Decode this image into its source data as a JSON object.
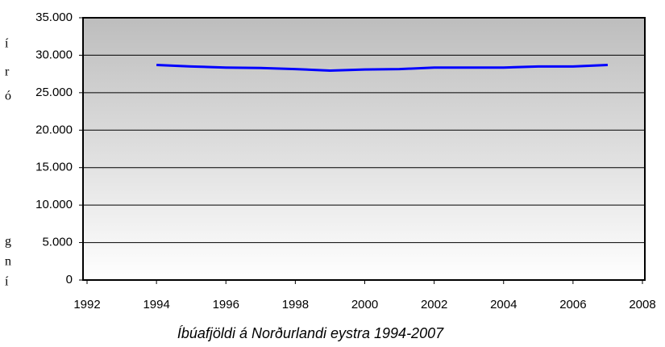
{
  "chart_data": {
    "type": "line",
    "title": "Íbúafjöldi á Norðurlandi eystra 1994-2007",
    "margin_fragments": [
      "í",
      "r",
      "ó",
      "g",
      "n",
      "í"
    ],
    "x": [
      1994,
      1995,
      1996,
      1997,
      1998,
      1999,
      2000,
      2001,
      2002,
      2003,
      2004,
      2005,
      2006,
      2007
    ],
    "series": [
      {
        "name": null,
        "color": "#0000ff",
        "values": [
          28700,
          28500,
          28350,
          28300,
          28150,
          27950,
          28100,
          28150,
          28350,
          28350,
          28350,
          28500,
          28500,
          28700
        ]
      }
    ],
    "xlim": [
      1992,
      2008
    ],
    "xticks": [
      1992,
      1994,
      1996,
      1998,
      2000,
      2002,
      2004,
      2006,
      2008
    ],
    "ylim": [
      0,
      35000
    ],
    "yticks": [
      {
        "value": 0,
        "label": "0"
      },
      {
        "value": 5000,
        "label": "5.000"
      },
      {
        "value": 10000,
        "label": "10.000"
      },
      {
        "value": 15000,
        "label": "15.000"
      },
      {
        "value": 20000,
        "label": "20.000"
      },
      {
        "value": 25000,
        "label": "25.000"
      },
      {
        "value": 30000,
        "label": "30.000"
      },
      {
        "value": 35000,
        "label": "35.000"
      }
    ],
    "grid": true
  }
}
